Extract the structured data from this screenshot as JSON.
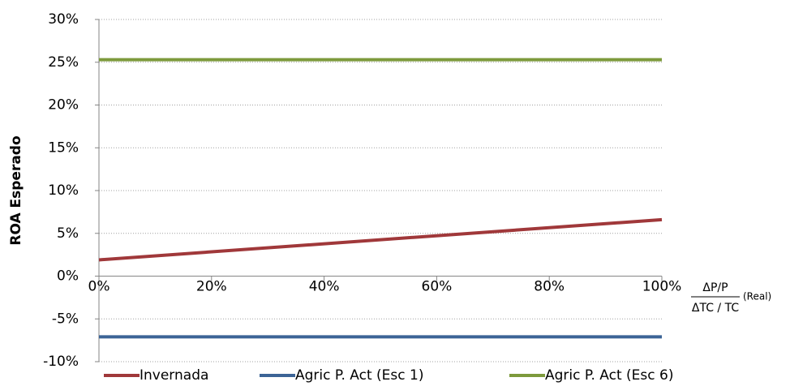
{
  "chart_data": {
    "type": "line",
    "y_label": "ROA Esperado",
    "x_label": {
      "numerator": "ΔP/P",
      "denominator": "ΔTC / TC",
      "suffix": "(Real)"
    },
    "x": [
      0,
      100
    ],
    "series": [
      {
        "name": "Invernada",
        "color": "#a0383a",
        "values": [
          1.9,
          6.6
        ]
      },
      {
        "name": "Agric P. Act (Esc 1)",
        "color": "#3c6496",
        "values": [
          -7.1,
          -7.1
        ]
      },
      {
        "name": "Agric P. Act (Esc 6)",
        "color": "#7d9a3c",
        "values": [
          25.3,
          25.3
        ]
      }
    ],
    "xlim": [
      0,
      100
    ],
    "xticks": [
      {
        "value": 0,
        "label": "0%"
      },
      {
        "value": 20,
        "label": "20%"
      },
      {
        "value": 40,
        "label": "40%"
      },
      {
        "value": 60,
        "label": "60%"
      },
      {
        "value": 80,
        "label": "80%"
      },
      {
        "value": 100,
        "label": "100%"
      }
    ],
    "ylim": [
      -10,
      30
    ],
    "yticks": [
      {
        "value": -10,
        "label": "-10%"
      },
      {
        "value": -5,
        "label": "-5%"
      },
      {
        "value": 0,
        "label": "0%"
      },
      {
        "value": 5,
        "label": "5%"
      },
      {
        "value": 10,
        "label": "10%"
      },
      {
        "value": 15,
        "label": "15%"
      },
      {
        "value": 20,
        "label": "20%"
      },
      {
        "value": 25,
        "label": "25%"
      },
      {
        "value": 30,
        "label": "30%"
      }
    ],
    "grid": true,
    "legend": "bottom"
  }
}
